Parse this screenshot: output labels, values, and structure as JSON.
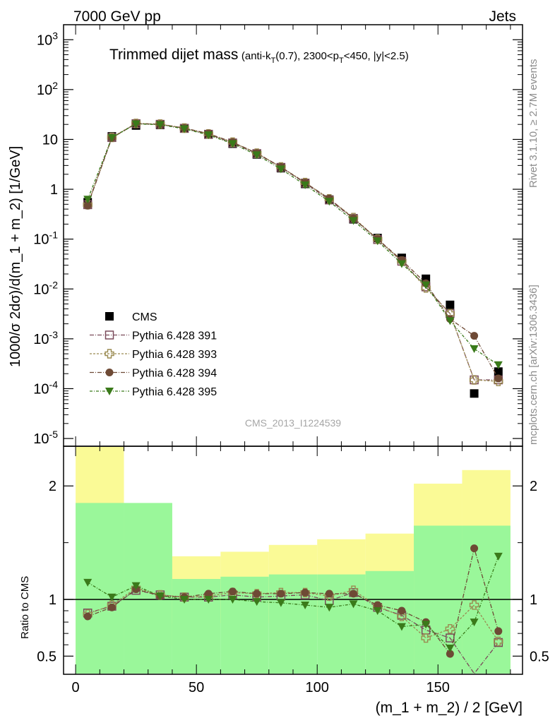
{
  "header": {
    "left": "7000 GeV pp",
    "right": "Jets"
  },
  "title": {
    "main": "Trimmed dijet mass",
    "cuts": "(anti-k_T(0.7), 2300<p_T<450, |y|<2.5)"
  },
  "side": {
    "rivet": "Rivet 3.1.10, ≥ 2.7M events",
    "source": "mcplots.cern.ch [arXiv:1306.3436]"
  },
  "analysis_id": "CMS_2013_I1224539",
  "chart_data": [
    {
      "type": "scatter",
      "panel": "main",
      "ylabel": "1000/σ 2dσ)/d(m_1 + m_2) [1/GeV]",
      "yscale": "log",
      "xlim": [
        -5,
        185
      ],
      "ylim": [
        7e-06,
        2000
      ],
      "ytick_labels": [
        "10^3",
        "10^2",
        "10",
        "1",
        "10^-1",
        "10^-2",
        "10^-3",
        "10^-4",
        "10^-5"
      ],
      "x": [
        5,
        15,
        25,
        35,
        45,
        55,
        65,
        75,
        85,
        95,
        105,
        115,
        125,
        135,
        145,
        155,
        165,
        175
      ],
      "series": [
        {
          "name": "CMS",
          "color": "#000000",
          "marker": "filled-square",
          "values": [
            0.55,
            11.5,
            19,
            19.5,
            16.5,
            12.5,
            8.2,
            5.0,
            2.65,
            1.28,
            0.62,
            0.25,
            0.105,
            0.042,
            0.016,
            0.0048,
            8e-05,
            0.00022
          ]
        },
        {
          "name": "Pythia 6.428 391",
          "color": "#7a4a5a",
          "marker": "open-square",
          "values": [
            0.49,
            10.9,
            20.7,
            20.1,
            16.7,
            12.7,
            8.5,
            5.2,
            2.75,
            1.33,
            0.61,
            0.26,
            0.098,
            0.036,
            0.011,
            0.0032,
            0.00015,
            0.00015
          ]
        },
        {
          "name": "Pythia 6.428 393",
          "color": "#9a8a50",
          "marker": "open-cross",
          "values": [
            0.49,
            11.0,
            20.9,
            20.3,
            16.9,
            12.9,
            8.8,
            5.3,
            2.8,
            1.36,
            0.64,
            0.27,
            0.1,
            0.036,
            0.0105,
            0.0032,
            0.00015,
            0.00014
          ]
        },
        {
          "name": "Pythia 6.428 394",
          "color": "#6e4a35",
          "marker": "filled-circle",
          "values": [
            0.47,
            10.7,
            20.8,
            20.1,
            16.9,
            13.1,
            8.8,
            5.3,
            2.8,
            1.36,
            0.65,
            0.26,
            0.1,
            0.038,
            0.013,
            0.0025,
            0.00115,
            0.00016
          ]
        },
        {
          "name": "Pythia 6.428 395",
          "color": "#3a7a1a",
          "marker": "filled-triangle-down",
          "values": [
            0.63,
            10.9,
            20.5,
            19.7,
            16.3,
            12.3,
            8.2,
            4.9,
            2.55,
            1.22,
            0.57,
            0.235,
            0.092,
            0.032,
            0.012,
            0.0023,
            0.00063,
            0.0003
          ]
        }
      ]
    },
    {
      "type": "scatter",
      "panel": "ratio",
      "ylabel": "Ratio to CMS",
      "xlabel": "(m_1 + m_2) / 2 [GeV]",
      "xlim": [
        -5,
        185
      ],
      "ylim": [
        0.34,
        2.35
      ],
      "ytick_labels": [
        "0.5",
        "1",
        "2"
      ],
      "xtick_labels": [
        "0",
        "50",
        "100",
        "150"
      ],
      "bands": {
        "edges": [
          0,
          20,
          40,
          60,
          80,
          100,
          120,
          140,
          160,
          180
        ],
        "inner": [
          [
            0.34,
            1.85
          ],
          [
            0.34,
            1.85
          ],
          [
            0.34,
            1.18
          ],
          [
            0.34,
            1.2
          ],
          [
            0.34,
            1.22
          ],
          [
            0.34,
            1.22
          ],
          [
            0.34,
            1.25
          ],
          [
            0.34,
            1.65
          ],
          [
            0.34,
            1.65
          ]
        ],
        "outer": [
          [
            0.34,
            2.35
          ],
          [
            0.59,
            1.72
          ],
          [
            0.79,
            1.38
          ],
          [
            0.79,
            1.42
          ],
          [
            0.79,
            1.48
          ],
          [
            0.79,
            1.53
          ],
          [
            0.68,
            1.58
          ],
          [
            0.34,
            2.02
          ],
          [
            0.34,
            2.14
          ]
        ],
        "inner_color": "#9af79a",
        "outer_color": "#fafa96"
      },
      "x": [
        5,
        15,
        25,
        35,
        45,
        55,
        65,
        75,
        85,
        95,
        105,
        115,
        125,
        135,
        145,
        155,
        165,
        175
      ],
      "series": [
        {
          "name": "Pythia 6.428 391",
          "color": "#7a4a5a",
          "marker": "open-square",
          "values": [
            0.88,
            0.94,
            1.08,
            1.04,
            1.02,
            1.02,
            1.04,
            1.02,
            1.03,
            1.04,
            0.99,
            1.06,
            0.93,
            0.86,
            0.73,
            0.66,
            0.3,
            0.62
          ]
        },
        {
          "name": "Pythia 6.428 393",
          "color": "#9a8a50",
          "marker": "open-cross",
          "values": [
            0.87,
            0.95,
            1.1,
            1.04,
            1.02,
            1.03,
            1.06,
            1.05,
            1.06,
            1.06,
            1.03,
            1.08,
            0.94,
            0.85,
            0.66,
            0.74,
            0.95,
            0.63
          ]
        },
        {
          "name": "Pythia 6.428 394",
          "color": "#6e4a35",
          "marker": "filled-circle",
          "values": [
            0.85,
            0.93,
            1.09,
            1.03,
            1.02,
            1.05,
            1.07,
            1.05,
            1.05,
            1.06,
            1.05,
            1.05,
            0.95,
            0.9,
            0.8,
            0.52,
            1.45,
            0.72
          ]
        },
        {
          "name": "Pythia 6.428 395",
          "color": "#3a7a1a",
          "marker": "filled-triangle-down",
          "values": [
            1.15,
            1.02,
            1.12,
            1.03,
            1.0,
            1.0,
            1.0,
            0.98,
            0.97,
            0.95,
            0.93,
            0.96,
            0.9,
            0.76,
            0.78,
            0.57,
            0.8,
            1.38
          ]
        }
      ]
    }
  ]
}
